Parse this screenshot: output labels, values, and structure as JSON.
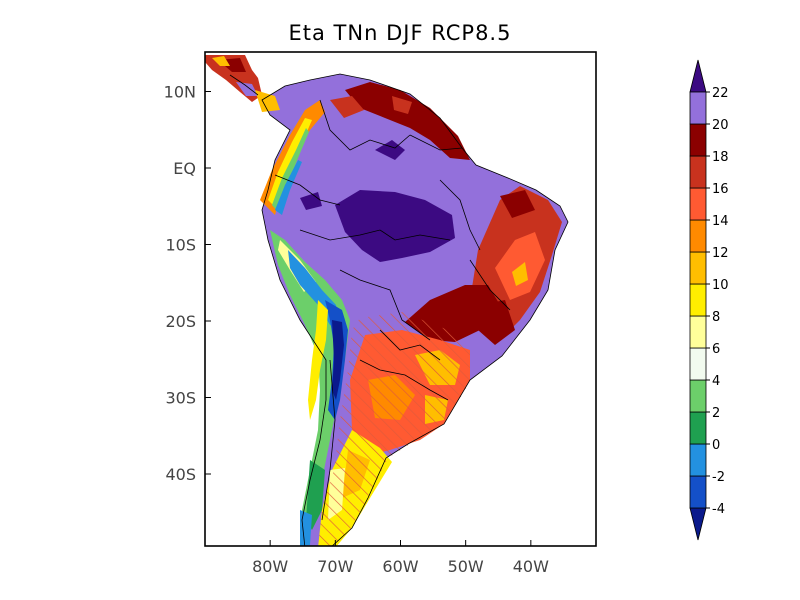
{
  "title": "Eta TNn DJF RCP8.5",
  "map": {
    "lat_ticks": [
      {
        "lat": 10,
        "label": "10N"
      },
      {
        "lat": 0,
        "label": "EQ"
      },
      {
        "lat": -10,
        "label": "10S"
      },
      {
        "lat": -20,
        "label": "20S"
      },
      {
        "lat": -30,
        "label": "30S"
      },
      {
        "lat": -40,
        "label": "40S"
      }
    ],
    "lon_ticks": [
      {
        "lon": -80,
        "label": "80W"
      },
      {
        "lon": -70,
        "label": "70W"
      },
      {
        "lon": -60,
        "label": "60W"
      },
      {
        "lon": -50,
        "label": "50W"
      },
      {
        "lon": -40,
        "label": "40W"
      }
    ],
    "lon_range": [
      -90,
      -30
    ],
    "lat_range": [
      -50,
      15
    ]
  },
  "colorbar": {
    "levels": [
      "-4",
      "-2",
      "0",
      "2",
      "4",
      "6",
      "8",
      "10",
      "12",
      "14",
      "16",
      "18",
      "20",
      "22"
    ],
    "colors": [
      "#0a1a8c",
      "#1450c8",
      "#2391e0",
      "#1fa050",
      "#6ccf6a",
      "#f2fbef",
      "#ffff9a",
      "#ffee00",
      "#ffbe00",
      "#ff8a00",
      "#ff5a32",
      "#c8321e",
      "#8b0000",
      "#9370db",
      "#3c0a82"
    ]
  }
}
